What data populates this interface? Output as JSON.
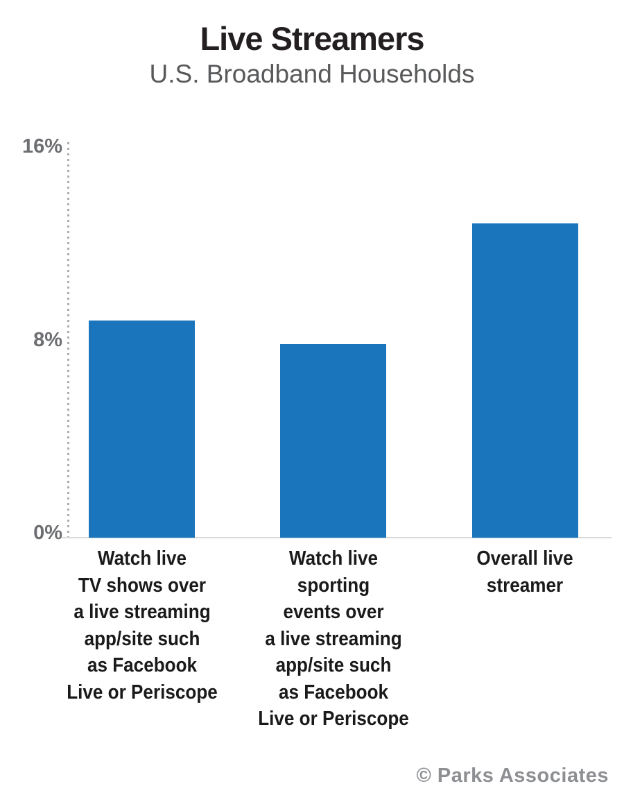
{
  "title": "Live Streamers",
  "subtitle": "U.S. Broadband Households",
  "credit": "© Parks Associates",
  "chart_data": {
    "type": "bar",
    "title": "Live Streamers",
    "subtitle": "U.S. Broadband Households",
    "categories": [
      "Watch live TV shows over a live streaming app/site such as Facebook Live or Periscope",
      "Watch live sporting events over a live streaming app/site such as Facebook Live or Periscope",
      "Overall live streamer"
    ],
    "categories_multiline": [
      "Watch live\nTV shows over\na live streaming\napp/site such\nas Facebook\nLive or Periscope",
      "Watch live\nsporting\nevents over\na live streaming\napp/site such\nas Facebook\nLive or Periscope",
      "Overall live\nstreamer"
    ],
    "values": [
      9,
      8,
      13
    ],
    "unit": "%",
    "xlabel": "",
    "ylabel": "",
    "ylim": [
      0,
      16
    ],
    "y_ticks": [
      {
        "label": "0%",
        "value": 0
      },
      {
        "label": "8%",
        "value": 8
      },
      {
        "label": "16%",
        "value": 16
      }
    ],
    "grid": false,
    "legend": "none",
    "bar_color": "#1b75bc"
  }
}
